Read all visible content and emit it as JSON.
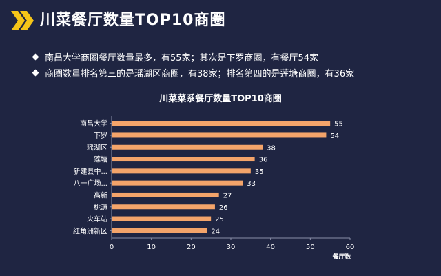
{
  "header": {
    "title": "川菜餐厅数量TOP10商圈",
    "icon": "double-chevron-right-icon",
    "icon_color": "#f5c518"
  },
  "bullets": [
    "南昌大学商圈餐厅数量最多，有55家；其次是下罗商圈，有餐厅54家",
    "商圈数量排名第三的是瑶湖区商圈，有38家；排名第四的是莲塘商圈，有36家"
  ],
  "colors": {
    "background": "#1f2542",
    "bar": "#f4a46a",
    "axis": "#8a8fa8",
    "text": "#ffffff"
  },
  "chart_data": {
    "type": "bar",
    "orientation": "horizontal",
    "title": "川菜菜系餐厅数量TOP10商圈",
    "categories": [
      "南昌大学",
      "下罗",
      "瑶湖区",
      "莲塘",
      "新建县中...",
      "八一广场...",
      "高新",
      "桃源",
      "火车站",
      "红角洲新区"
    ],
    "values": [
      55,
      54,
      38,
      36,
      35,
      33,
      27,
      26,
      25,
      24
    ],
    "xlabel": "餐厅数",
    "ylabel": "",
    "xlim": [
      0,
      60
    ],
    "xticks": [
      0,
      10,
      20,
      30,
      40,
      50,
      60
    ],
    "grid": false,
    "data_labels": true
  }
}
